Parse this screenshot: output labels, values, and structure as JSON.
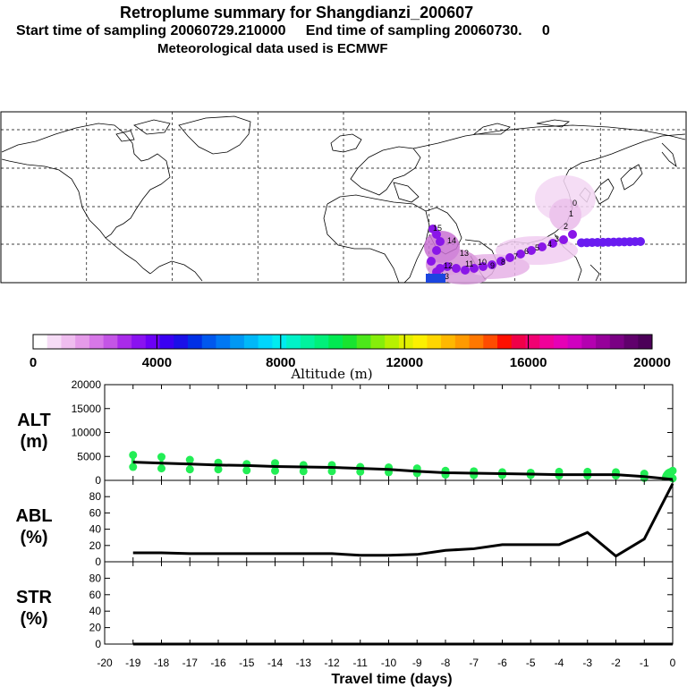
{
  "header": {
    "title": "Retroplume summary for Shangdianzi_200607",
    "sampling_line": "Start time of sampling 20060729.210000     End time of sampling 20060730.     0",
    "met_line": "Meteorological data used is ECMWF"
  },
  "colorbar": {
    "label": "Altitude (m)",
    "ticks": [
      "0",
      "4000",
      "8000",
      "12000",
      "16000",
      "20000"
    ],
    "colors": [
      "#ffffff",
      "#f6dcf6",
      "#efbdef",
      "#e59be9",
      "#d777e8",
      "#c455e6",
      "#a92bea",
      "#8a12f0",
      "#6c00f6",
      "#3a00f2",
      "#1a10e8",
      "#0030e6",
      "#0058ee",
      "#0078f4",
      "#0098f4",
      "#00b8f8",
      "#00d6fc",
      "#00ecf0",
      "#00f2c8",
      "#00f29e",
      "#00f07a",
      "#00ea52",
      "#18e430",
      "#4ce81a",
      "#86ee0a",
      "#b8f000",
      "#e2f000",
      "#fcf000",
      "#ffd600",
      "#ffb800",
      "#ff9a00",
      "#ff7800",
      "#ff4c00",
      "#ff1000",
      "#f00048",
      "#f20072",
      "#f0009a",
      "#e600b6",
      "#d000c0",
      "#b400b0",
      "#96009a",
      "#7a0084",
      "#60006c",
      "#4c0058"
    ]
  },
  "map": {
    "trajectory_labels": [
      "15",
      "14",
      "13",
      "12",
      "13",
      "11",
      "10",
      "9",
      "8",
      "7",
      "6",
      "5",
      "4",
      "3",
      "2",
      "1",
      "0"
    ]
  },
  "chart_data": [
    {
      "type": "line",
      "panel": "ALT",
      "ylabel": "ALT\n(m)",
      "ylim": [
        0,
        20000
      ],
      "yticks": [
        0,
        5000,
        10000,
        15000,
        20000
      ],
      "x": [
        -19,
        -18,
        -17,
        -16,
        -15,
        -14,
        -13,
        -12,
        -11,
        -10,
        -9,
        -8,
        -7,
        -6,
        -5,
        -4,
        -3,
        -2,
        -1,
        0
      ],
      "series": [
        {
          "name": "mean altitude",
          "values": [
            3800,
            3600,
            3400,
            3200,
            3100,
            2900,
            2800,
            2700,
            2500,
            2300,
            1900,
            1600,
            1500,
            1400,
            1300,
            1200,
            1200,
            1200,
            800,
            200
          ]
        },
        {
          "name": "cluster upper",
          "values": [
            5300,
            4900,
            4300,
            3700,
            3400,
            3600,
            3200,
            3200,
            2800,
            2700,
            2500,
            2000,
            1900,
            1700,
            1600,
            1800,
            1800,
            1700,
            1400,
            2000
          ]
        },
        {
          "name": "cluster lower",
          "values": [
            2800,
            2500,
            2300,
            2300,
            2100,
            2000,
            1900,
            1900,
            1800,
            1700,
            1500,
            1200,
            1100,
            1100,
            1100,
            1000,
            1000,
            1000,
            500,
            400
          ]
        }
      ]
    },
    {
      "type": "line",
      "panel": "ABL",
      "ylabel": "ABL\n(%)",
      "ylim": [
        0,
        100
      ],
      "yticks": [
        0,
        20,
        40,
        60,
        80
      ],
      "x": [
        -19,
        -18,
        -17,
        -16,
        -15,
        -14,
        -13,
        -12,
        -11,
        -10,
        -9,
        -8,
        -7,
        -6,
        -5,
        -4,
        -3,
        -2,
        -1,
        0
      ],
      "values": [
        11,
        11,
        10,
        10,
        10,
        10,
        10,
        10,
        8,
        8,
        9,
        14,
        16,
        21,
        21,
        21,
        36,
        7,
        28,
        96
      ]
    },
    {
      "type": "line",
      "panel": "STR",
      "ylabel": "STR\n(%)",
      "ylim": [
        0,
        100
      ],
      "yticks": [
        0,
        20,
        40,
        60,
        80
      ],
      "x": [
        -19,
        -18,
        -17,
        -16,
        -15,
        -14,
        -13,
        -12,
        -11,
        -10,
        -9,
        -8,
        -7,
        -6,
        -5,
        -4,
        -3,
        -2,
        -1,
        0
      ],
      "values": [
        0,
        0,
        0,
        0,
        0,
        0,
        0,
        0,
        0,
        0,
        0,
        0,
        0,
        0,
        0,
        0,
        0,
        0,
        0,
        0
      ]
    }
  ],
  "xaxis": {
    "xlabel": "Travel time (days)",
    "ticks": [
      "-20",
      "-19",
      "-18",
      "-17",
      "-16",
      "-15",
      "-14",
      "-13",
      "-12",
      "-11",
      "-10",
      "-9",
      "-8",
      "-7",
      "-6",
      "-5",
      "-4",
      "-3",
      "-2",
      "-1",
      "0"
    ],
    "xlim": [
      -20,
      0
    ]
  }
}
